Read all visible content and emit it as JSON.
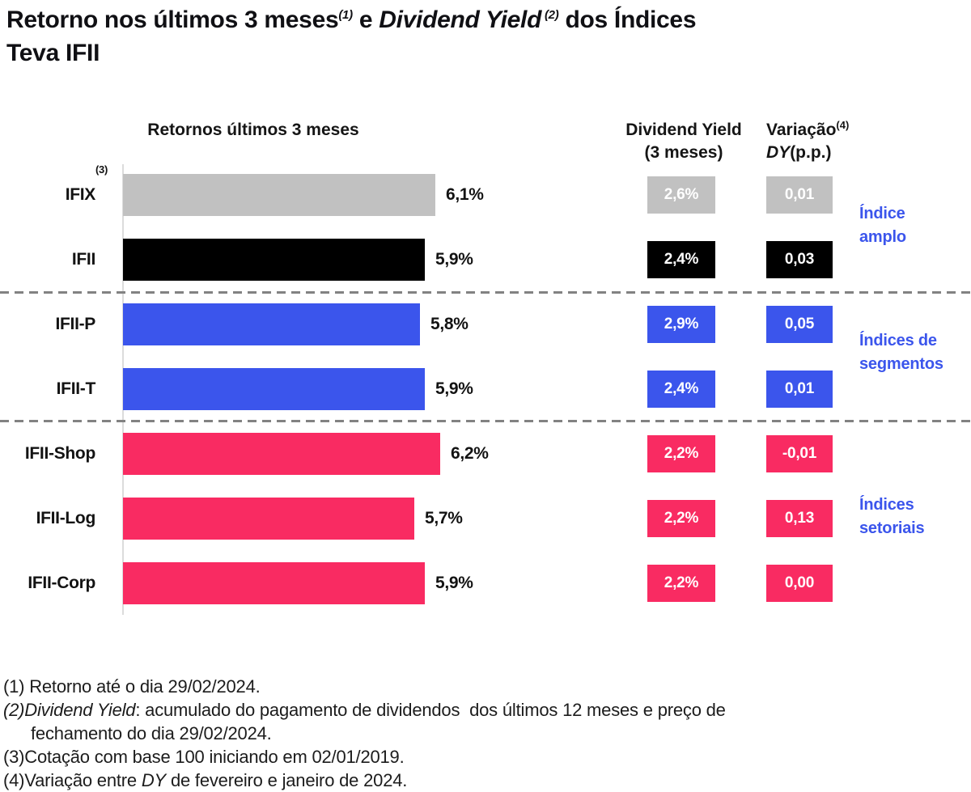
{
  "title": {
    "line1_segments": [
      {
        "t": "Retorno nos últimos 3 meses",
        "i": false,
        "sup": false
      },
      {
        "t": "(1)",
        "i": true,
        "sup": true
      },
      {
        "t": " e ",
        "i": false,
        "sup": false
      },
      {
        "t": "Dividend Yield",
        "i": true,
        "sup": false
      },
      {
        "t": " (2)",
        "i": true,
        "sup": true
      },
      {
        "t": " dos Índices",
        "i": false,
        "sup": false
      }
    ],
    "line2": "Teva IFII"
  },
  "headers": {
    "returns": "Retornos últimos 3 meses",
    "dy_line1": "Dividend Yield",
    "dy_line2": "(3 meses)",
    "var_line1_segments": [
      {
        "t": "Variação",
        "i": false,
        "sup": false
      },
      {
        "t": "(4)",
        "i": false,
        "sup": true
      }
    ],
    "var_line2_segments": [
      {
        "t": "DY",
        "i": true,
        "sup": false
      },
      {
        "t": "(p.p.)",
        "i": false,
        "sup": false
      }
    ]
  },
  "colors": {
    "broad_benchmark": "#c1c1c1",
    "broad_main": "#000000",
    "segments": "#3b55ec",
    "sectors": "#f92b62",
    "group_label_text": "#3b55ec",
    "box_text": "#ffffff",
    "dashed_separator": "#828282",
    "axis_line": "#dcdcdc"
  },
  "rows": [
    {
      "label": "IFIX",
      "sup": "(3)",
      "return_label": "6,1%",
      "return_value": 6.1,
      "dy_label": "2,6%",
      "var_label": "0,01",
      "color": "#c1c1c1"
    },
    {
      "label": "IFII",
      "sup": "",
      "return_label": "5,9%",
      "return_value": 5.9,
      "dy_label": "2,4%",
      "var_label": "0,03",
      "color": "#000000"
    },
    {
      "label": "IFII-P",
      "sup": "",
      "return_label": "5,8%",
      "return_value": 5.8,
      "dy_label": "2,9%",
      "var_label": "0,05",
      "color": "#3b55ec"
    },
    {
      "label": "IFII-T",
      "sup": "",
      "return_label": "5,9%",
      "return_value": 5.9,
      "dy_label": "2,4%",
      "var_label": "0,01",
      "color": "#3b55ec"
    },
    {
      "label": "IFII-Shop",
      "sup": "",
      "return_label": "6,2%",
      "return_value": 6.2,
      "dy_label": "2,2%",
      "var_label": "-0,01",
      "color": "#f92b62"
    },
    {
      "label": "IFII-Log",
      "sup": "",
      "return_label": "5,7%",
      "return_value": 5.7,
      "dy_label": "2,2%",
      "var_label": "0,13",
      "color": "#f92b62"
    },
    {
      "label": "IFII-Corp",
      "sup": "",
      "return_label": "5,9%",
      "return_value": 5.9,
      "dy_label": "2,2%",
      "var_label": "0,00",
      "color": "#f92b62"
    }
  ],
  "groups": [
    {
      "line1": "Índice",
      "line2": "amplo"
    },
    {
      "line1": "Índices de",
      "line2": "segmentos"
    },
    {
      "line1": "Índices",
      "line2": "setoriais"
    }
  ],
  "chart_data": {
    "type": "bar",
    "orientation": "horizontal",
    "title": "Retorno nos últimos 3 meses(1) e Dividend Yield (2) dos Índices Teva IFII",
    "categories": [
      "IFIX",
      "IFII",
      "IFII-P",
      "IFII-T",
      "IFII-Shop",
      "IFII-Log",
      "IFII-Corp"
    ],
    "series": [
      {
        "name": "Retornos últimos 3 meses (%)",
        "values": [
          6.1,
          5.9,
          5.8,
          5.9,
          6.2,
          5.7,
          5.9
        ]
      },
      {
        "name": "Dividend Yield (3 meses) (%)",
        "values": [
          2.6,
          2.4,
          2.9,
          2.4,
          2.2,
          2.2,
          2.2
        ]
      },
      {
        "name": "Variação DY (p.p.)",
        "values": [
          0.01,
          0.03,
          0.05,
          0.01,
          -0.01,
          0.13,
          0.0
        ]
      }
    ],
    "groups": [
      {
        "label": "Índice amplo",
        "categories": [
          "IFIX",
          "IFII"
        ]
      },
      {
        "label": "Índices de segmentos",
        "categories": [
          "IFII-P",
          "IFII-T"
        ]
      },
      {
        "label": "Índices setoriais",
        "categories": [
          "IFII-Shop",
          "IFII-Log",
          "IFII-Corp"
        ]
      }
    ],
    "xlim": [
      0,
      6.6
    ],
    "grid": false,
    "legend_position": "none",
    "value_labels": true
  },
  "footnotes": [
    {
      "indent": false,
      "segments": [
        {
          "t": "(1) Retorno até o dia 29/02/2024.",
          "i": false
        }
      ]
    },
    {
      "indent": false,
      "segments": [
        {
          "t": "(2)",
          "i": true
        },
        {
          "t": "Dividend Yield",
          "i": true
        },
        {
          "t": ": acumulado do pagamento de dividendos  dos últimos 12 meses e preço de",
          "i": false
        }
      ]
    },
    {
      "indent": true,
      "segments": [
        {
          "t": "fechamento do dia 29/02/2024.",
          "i": false
        }
      ]
    },
    {
      "indent": false,
      "segments": [
        {
          "t": "(3)Cotação com base 100 iniciando em 02/01/2019.",
          "i": false
        }
      ]
    },
    {
      "indent": false,
      "segments": [
        {
          "t": "(4)Variação entre ",
          "i": false
        },
        {
          "t": "DY",
          "i": true
        },
        {
          "t": " de fevereiro e janeiro de 2024.",
          "i": false
        }
      ]
    }
  ]
}
